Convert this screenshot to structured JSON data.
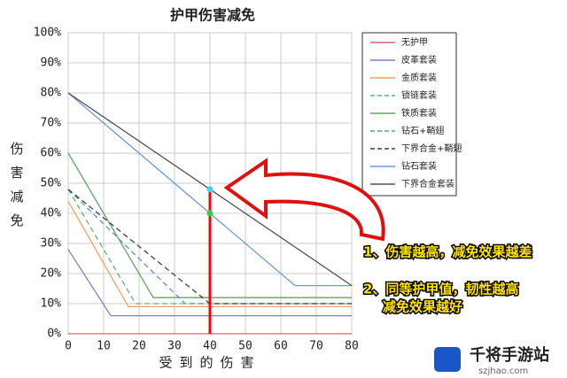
{
  "chart_data": {
    "type": "line",
    "title": "护甲伤害减免",
    "ylabel": "伤害减免",
    "xlabel": "受到的伤害",
    "xlim": [
      0,
      80
    ],
    "xticks": [
      0,
      10,
      20,
      30,
      40,
      50,
      60,
      70,
      80
    ],
    "ylim": [
      0,
      100
    ],
    "yticks": [
      {
        "value": 0,
        "label": "0%"
      },
      {
        "value": 10,
        "label": "10%"
      },
      {
        "value": 20,
        "label": "20%"
      },
      {
        "value": 30,
        "label": "30%"
      },
      {
        "value": 40,
        "label": "40%"
      },
      {
        "value": 50,
        "label": "50%"
      },
      {
        "value": 60,
        "label": "60%"
      },
      {
        "value": 70,
        "label": "70%"
      },
      {
        "value": 80,
        "label": "80%"
      },
      {
        "value": 90,
        "label": "90%"
      },
      {
        "value": 100,
        "label": "100%"
      }
    ],
    "grid": true,
    "series": [
      {
        "name": "无护甲",
        "color": "#e06060",
        "dashed": false,
        "x": [
          0,
          80
        ],
        "values": [
          0,
          0
        ]
      },
      {
        "name": "皮革套装",
        "color": "#8080c8",
        "dashed": false,
        "x": [
          0,
          12,
          80
        ],
        "values": [
          28,
          6,
          6
        ]
      },
      {
        "name": "金质套装",
        "color": "#f0a060",
        "dashed": false,
        "x": [
          0,
          17,
          80
        ],
        "values": [
          44,
          9,
          9
        ]
      },
      {
        "name": "锁链套装",
        "color": "#60b080",
        "dashed": true,
        "x": [
          0,
          19,
          80
        ],
        "values": [
          48,
          10,
          10
        ]
      },
      {
        "name": "铁质套装",
        "color": "#60a860",
        "dashed": false,
        "x": [
          0,
          24,
          80
        ],
        "values": [
          60,
          12,
          12
        ]
      },
      {
        "name": "钻石+鞘翅",
        "color": "#6090c8",
        "dashed": true,
        "x": [
          0,
          33,
          80
        ],
        "values": [
          48,
          10,
          10
        ]
      },
      {
        "name": "下界合金+鞘翅",
        "color": "#404040",
        "dashed": true,
        "x": [
          0,
          40,
          80
        ],
        "values": [
          48,
          10,
          10
        ]
      },
      {
        "name": "钻石套装",
        "color": "#6a9ad8",
        "dashed": false,
        "x": [
          0,
          64,
          80
        ],
        "values": [
          80,
          16,
          16
        ]
      },
      {
        "name": "下界合金套装",
        "color": "#505050",
        "dashed": false,
        "x": [
          0,
          80
        ],
        "values": [
          80,
          16
        ]
      }
    ],
    "highlight": {
      "x": 40,
      "values": [
        48,
        40
      ],
      "colors": [
        "#40d8e8",
        "#30d040"
      ]
    },
    "notes": [
      "1、伤害越高，减免效果越差",
      "2、同等护甲值，韧性越高",
      "减免效果越好"
    ]
  },
  "watermark": {
    "name": "千将手游站",
    "url": "szjhao.com"
  }
}
